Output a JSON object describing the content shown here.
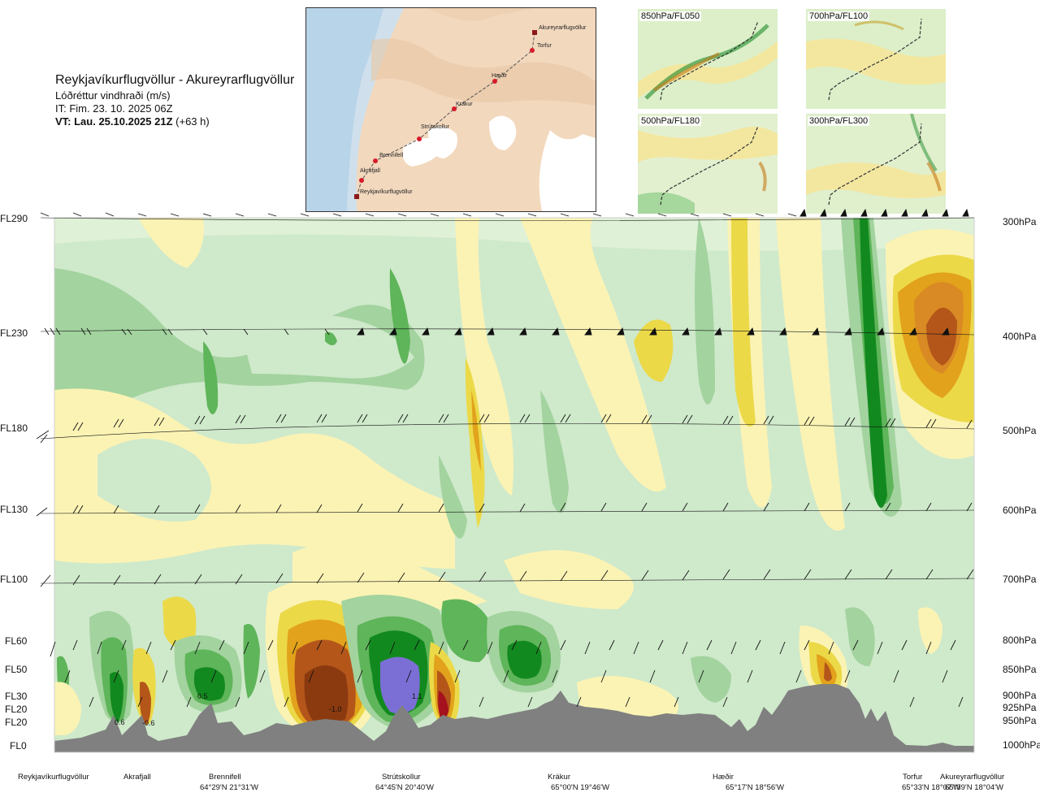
{
  "header": {
    "route": "Reykjavíkurflugvöllur - Akureyrarflugvöllur",
    "parameter": "Lóðréttur vindhraði (m/s)",
    "init_time": "IT: Fim. 23. 10. 2025 06Z",
    "valid_label": "VT: Lau. 25.10.2025 21Z",
    "valid_offset": "(+63 h)"
  },
  "route_map": {
    "points": [
      {
        "name": "Akureyrarflugvöllur"
      },
      {
        "name": "Torfur"
      },
      {
        "name": "Hæðir"
      },
      {
        "name": "Krákur"
      },
      {
        "name": "Strútskollur"
      },
      {
        "name": "Brennifell"
      },
      {
        "name": "Akrafjall"
      },
      {
        "name": "Reykjavíkurflugvöllur"
      }
    ]
  },
  "level_maps": [
    {
      "label": "850hPa/FL050"
    },
    {
      "label": "700hPa/FL100"
    },
    {
      "label": "500hPa/FL180"
    },
    {
      "label": "300hPa/FL300"
    }
  ],
  "chart_data": {
    "type": "heatmap",
    "title": "Lóðréttur vindhraði (m/s)",
    "flight_levels": [
      "FL290",
      "FL230",
      "FL180",
      "FL130",
      "FL100",
      "FL60",
      "FL50",
      "FL30",
      "FL20",
      "FL20",
      "FL0"
    ],
    "pressure_levels": [
      "300hPa",
      "400hPa",
      "500hPa",
      "600hPa",
      "700hPa",
      "800hPa",
      "850hPa",
      "900hPa",
      "925hPa",
      "950hPa",
      "1000hPa"
    ],
    "stations": [
      {
        "name": "Reykjavíkurflugvöllur",
        "coord": ""
      },
      {
        "name": "Akrafjall",
        "coord": ""
      },
      {
        "name": "Brennifell",
        "coord": "64°29'N 21°31'W"
      },
      {
        "name": "Strútskollur",
        "coord": "64°45'N 20°40'W"
      },
      {
        "name": "Krákur",
        "coord": "65°00'N 19°46'W"
      },
      {
        "name": "Hæðir",
        "coord": "65°17'N 18°56'W"
      },
      {
        "name": "Torfur",
        "coord": "65°33'N 18°07'W"
      },
      {
        "name": "Akureyrarflugvöllur",
        "coord": "65°39'N 18°04'W"
      }
    ],
    "extremes": [
      {
        "label": "0.6",
        "sign": "positive"
      },
      {
        "label": "-0.6",
        "sign": "negative"
      },
      {
        "label": "0.5",
        "sign": "positive"
      },
      {
        "label": "-1.0",
        "sign": "negative"
      },
      {
        "label": "1.1",
        "sign": "positive"
      }
    ],
    "colors": {
      "up_weak": "#cfe9cb",
      "up_mod": "#a3d39f",
      "up_strong": "#5fb55a",
      "up_vstrong": "#12891f",
      "up_extreme": "#7b6fd6",
      "down_weak": "#fbf3b4",
      "down_mod": "#ebd948",
      "down_strong": "#e2a21b",
      "down_vstrong": "#b4561a",
      "down_extreme": "#8b3a10",
      "down_max": "#a5111d",
      "terrain": "#808080"
    }
  }
}
